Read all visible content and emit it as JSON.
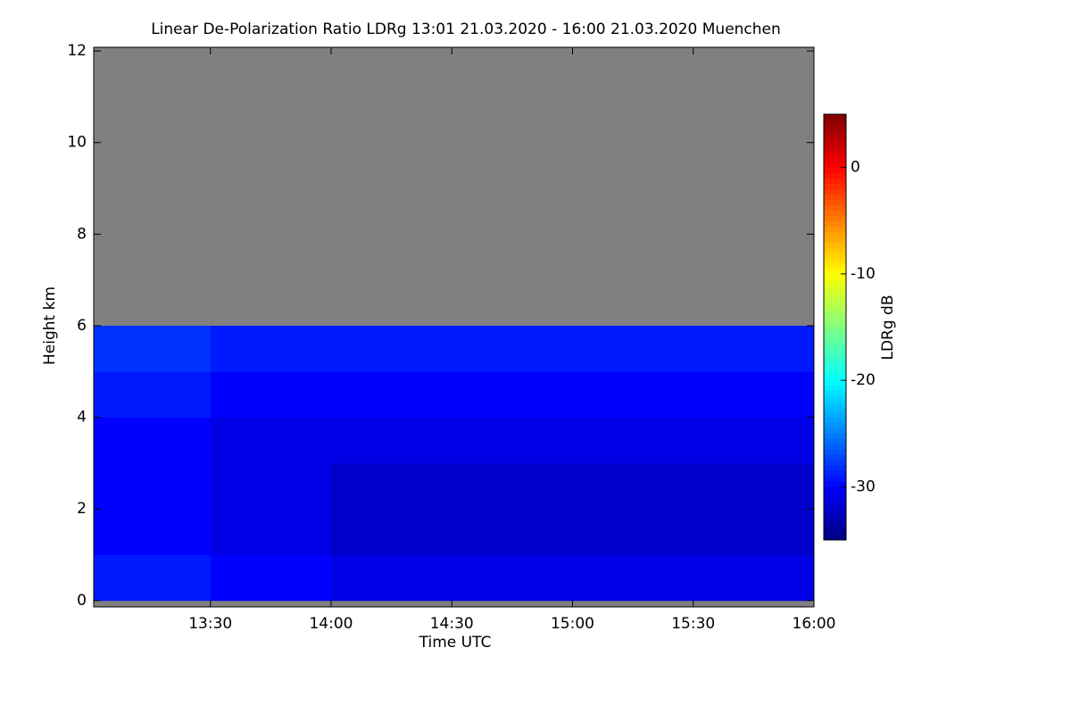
{
  "chart_data": {
    "type": "heatmap",
    "title": "Linear De-Polarization Ratio LDRg   13:01 21.03.2020 - 16:00 21.03.2020 Muenchen",
    "x_label": "Time UTC",
    "y_label": "Height km",
    "colorbar_label": "LDRg dB",
    "xlim": [
      781,
      960
    ],
    "xticks": [
      {
        "value": 810,
        "label": "13:30"
      },
      {
        "value": 840,
        "label": "14:00"
      },
      {
        "value": 870,
        "label": "14:30"
      },
      {
        "value": 900,
        "label": "15:00"
      },
      {
        "value": 930,
        "label": "15:30"
      },
      {
        "value": 960,
        "label": "16:00"
      }
    ],
    "ylim": [
      -0.14,
      12.08
    ],
    "yticks": [
      0,
      2,
      4,
      6,
      8,
      10,
      12
    ],
    "x_edges": [
      781,
      810,
      840,
      870,
      900,
      930,
      960
    ],
    "y_edges": [
      0,
      1,
      2,
      3,
      4,
      5,
      6,
      7,
      8,
      9,
      10,
      11,
      12
    ],
    "z": [
      [
        -29,
        -30,
        -31,
        -31,
        -31,
        -31
      ],
      [
        -30,
        -31,
        -32,
        -32,
        -32,
        -32
      ],
      [
        -30,
        -31,
        -32,
        -32,
        -32,
        -32
      ],
      [
        -30,
        -31,
        -31,
        -31,
        -31,
        -31
      ],
      [
        -29,
        -30,
        -30,
        -30,
        -30,
        -30
      ],
      [
        -28,
        -29,
        -29,
        -29,
        -29,
        -29
      ],
      [
        null,
        null,
        null,
        null,
        null,
        null
      ],
      [
        null,
        null,
        null,
        null,
        null,
        null
      ],
      [
        null,
        null,
        null,
        null,
        null,
        null
      ],
      [
        null,
        null,
        null,
        null,
        null,
        null
      ],
      [
        null,
        null,
        null,
        null,
        null,
        null
      ],
      [
        null,
        null,
        null,
        null,
        null,
        null
      ]
    ],
    "clim": [
      -35,
      5
    ],
    "cticks": [
      0,
      -10,
      -20,
      -30
    ],
    "colormap": "jet",
    "missing_color": "#808080"
  }
}
